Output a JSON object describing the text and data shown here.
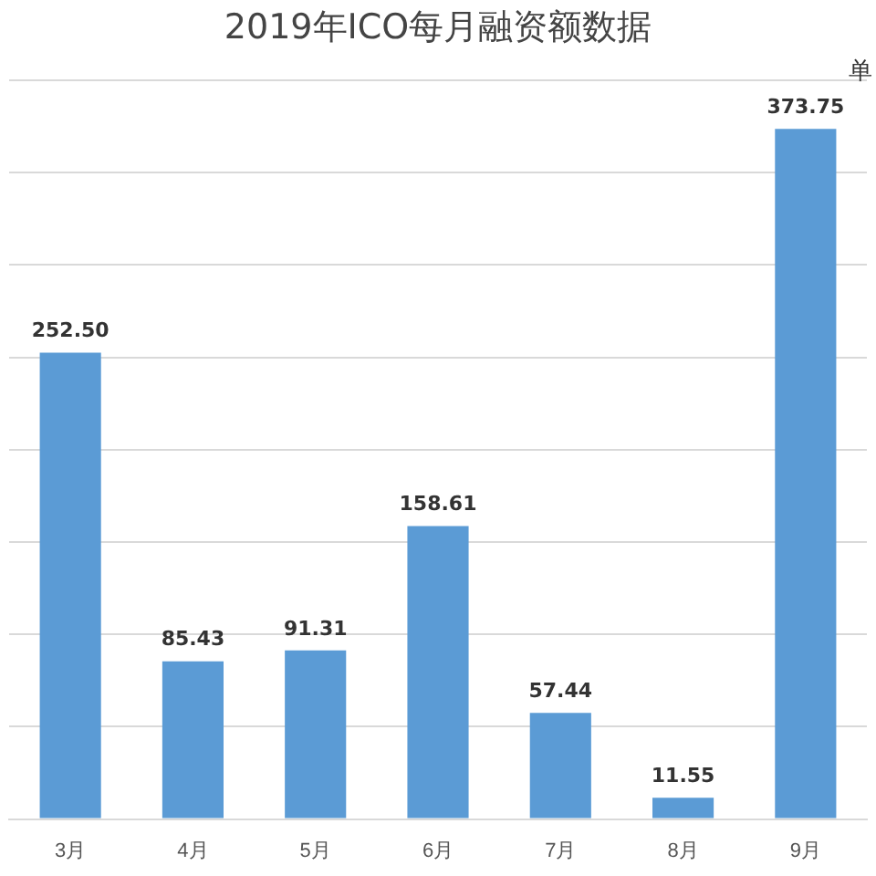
{
  "chart_data": {
    "type": "bar",
    "title": "2019年ICO每月融资额数据",
    "categories": [
      "3月",
      "4月",
      "5月",
      "6月",
      "7月",
      "8月",
      "9月"
    ],
    "values": [
      252.5,
      85.43,
      91.31,
      158.61,
      57.44,
      11.55,
      373.75
    ],
    "value_labels": [
      "252.50",
      "85.43",
      "91.31",
      "158.61",
      "57.44",
      "11.55",
      "373.75"
    ],
    "color": "#5b9bd5",
    "ylim": [
      0,
      400
    ],
    "yticks": [
      {
        "value": 0,
        "label": null
      },
      {
        "value": 50,
        "label": null
      },
      {
        "value": 100,
        "label": null
      },
      {
        "value": 150,
        "label": null
      },
      {
        "value": 200,
        "label": null
      },
      {
        "value": 250,
        "label": null
      },
      {
        "value": 300,
        "label": null
      },
      {
        "value": 350,
        "label": null
      },
      {
        "value": 400,
        "label": null
      }
    ],
    "grid": "y",
    "tick_labels": "x",
    "annotations": [
      "单"
    ]
  }
}
